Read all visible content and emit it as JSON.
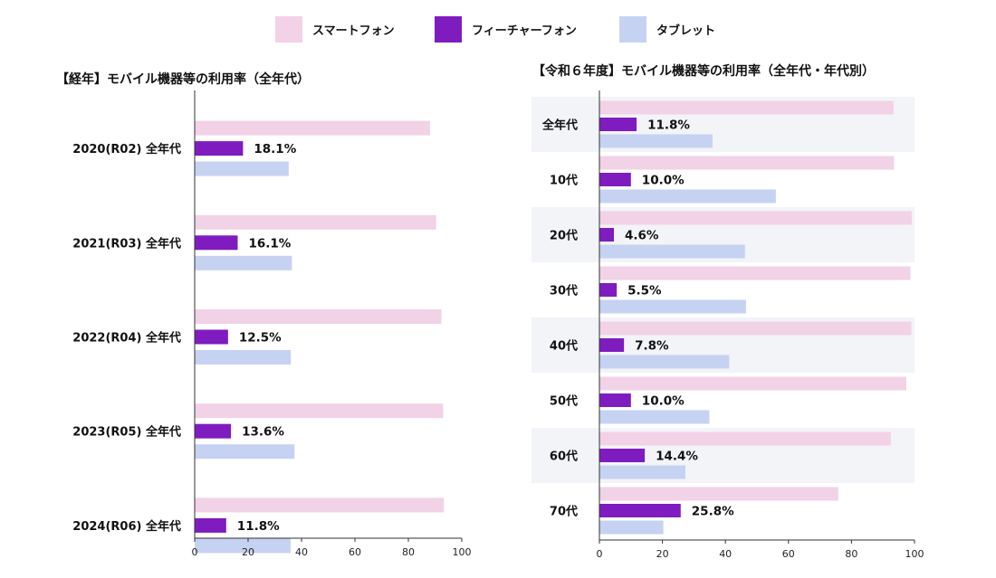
{
  "colors": {
    "smartphone": "#f1d2e6",
    "feature_phone": "#7e1cbf",
    "tablet": "#c6d2f2",
    "band": "#f2f4f8",
    "axis": "#333333"
  },
  "legend": [
    {
      "key": "smartphone",
      "label": "スマートフォン"
    },
    {
      "key": "feature_phone",
      "label": "フィーチャーフォン"
    },
    {
      "key": "tablet",
      "label": "タブレット"
    }
  ],
  "chart_data": [
    {
      "type": "bar",
      "orientation": "horizontal",
      "title": "【経年】モバイル機器等の利用率（全年代）",
      "categories": [
        "2020(R02) 全年代",
        "2021(R03) 全年代",
        "2022(R04) 全年代",
        "2023(R05) 全年代",
        "2024(R06) 全年代"
      ],
      "series": [
        {
          "name": "スマートフォン",
          "key": "smartphone",
          "values": [
            88.1,
            90.4,
            92.4,
            93.0,
            93.3
          ]
        },
        {
          "name": "フィーチャーフォン",
          "key": "feature_phone",
          "values": [
            18.1,
            16.1,
            12.5,
            13.6,
            11.8
          ]
        },
        {
          "name": "タブレット",
          "key": "tablet",
          "values": [
            35.2,
            36.4,
            36.0,
            37.4,
            35.9
          ]
        }
      ],
      "data_labels": [
        "18.1%",
        "16.1%",
        "12.5%",
        "13.6%",
        "11.8%"
      ],
      "xlim": [
        0,
        100
      ],
      "xticks": [
        "0",
        "20",
        "40",
        "60",
        "80",
        "100"
      ],
      "banded_rows": false
    },
    {
      "type": "bar",
      "orientation": "horizontal",
      "title": "【令和６年度】モバイル機器等の利用率（全年代・年代別）",
      "categories": [
        "全年代",
        "10代",
        "20代",
        "30代",
        "40代",
        "50代",
        "60代",
        "70代"
      ],
      "series": [
        {
          "name": "スマートフォン",
          "key": "smartphone",
          "values": [
            93.3,
            93.5,
            99.1,
            98.7,
            99.0,
            97.4,
            92.5,
            75.8
          ]
        },
        {
          "name": "フィーチャーフォン",
          "key": "feature_phone",
          "values": [
            11.8,
            10.0,
            4.6,
            5.5,
            7.8,
            10.0,
            14.4,
            25.8
          ]
        },
        {
          "name": "タブレット",
          "key": "tablet",
          "values": [
            35.9,
            56.0,
            46.2,
            46.5,
            41.2,
            34.9,
            27.3,
            20.3
          ]
        }
      ],
      "data_labels": [
        "11.8%",
        "10.0%",
        "4.6%",
        "5.5%",
        "7.8%",
        "10.0%",
        "14.4%",
        "25.8%"
      ],
      "xlim": [
        0,
        100
      ],
      "xticks": [
        "0",
        "20",
        "40",
        "60",
        "80",
        "100"
      ],
      "banded_rows": true
    }
  ]
}
